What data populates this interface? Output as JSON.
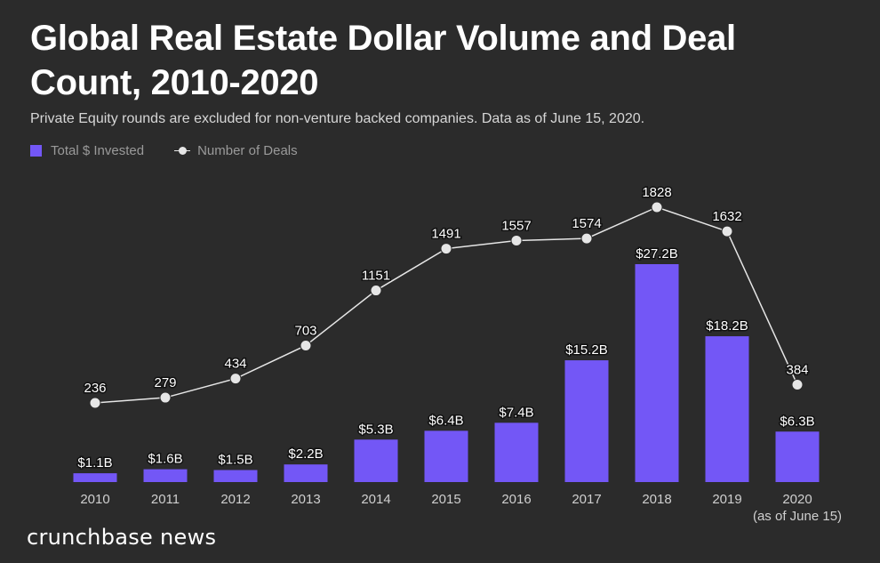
{
  "chart_data": {
    "type": "bar",
    "title": "Global Real Estate Dollar Volume and Deal Count, 2010-2020",
    "subtitle": "Private Equity rounds are excluded for non-venture backed companies. Data as of June 15, 2020.",
    "categories": [
      "2010",
      "2011",
      "2012",
      "2013",
      "2014",
      "2015",
      "2016",
      "2017",
      "2018",
      "2019",
      "2020"
    ],
    "category_note": {
      "index": 10,
      "text": "(as of June 15)"
    },
    "series": [
      {
        "name": "Total $ Invested",
        "type": "bar",
        "color": "#7357f6",
        "unit": "B USD",
        "values": [
          1.1,
          1.6,
          1.5,
          2.2,
          5.3,
          6.4,
          7.4,
          15.2,
          27.2,
          18.2,
          6.3
        ],
        "labels": [
          "$1.1B",
          "$1.6B",
          "$1.5B",
          "$2.2B",
          "$5.3B",
          "$6.4B",
          "$7.4B",
          "$15.2B",
          "$27.2B",
          "$18.2B",
          "$6.3B"
        ]
      },
      {
        "name": "Number of Deals",
        "type": "line",
        "color": "#e6e6e6",
        "values": [
          236,
          279,
          434,
          703,
          1151,
          1491,
          1557,
          1574,
          1828,
          1632,
          384
        ],
        "labels": [
          "236",
          "279",
          "434",
          "703",
          "1151",
          "1491",
          "1557",
          "1574",
          "1828",
          "1632",
          "384"
        ]
      }
    ],
    "legend_position": "top-left",
    "grid": false
  },
  "brand": {
    "text": "crunchbase news"
  }
}
